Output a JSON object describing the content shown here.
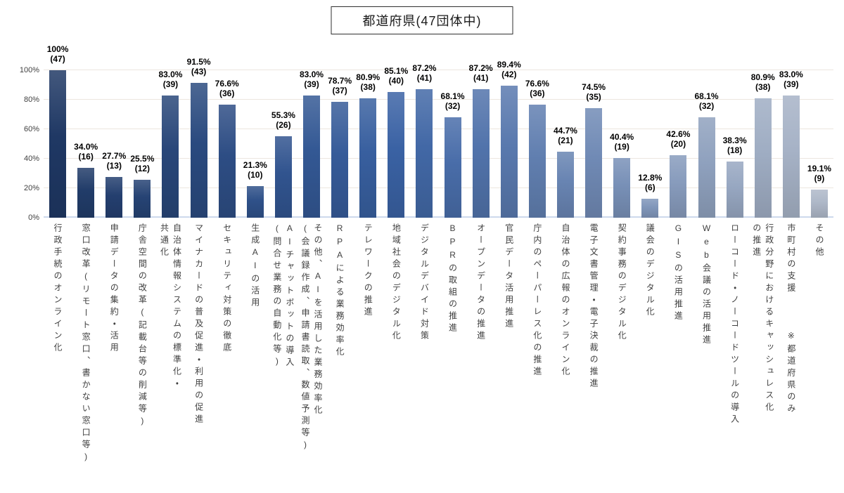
{
  "title": "都道府県(47団体中)",
  "chart_data": {
    "type": "bar",
    "title": "都道府県(47団体中)",
    "categories": [
      "行政手続のオンライン化",
      "窓口改革(リモート窓口、書かない窓口等)",
      "申請データの集約・活用",
      "庁舎空間の改革(記載台等の削減等)",
      "自治体情報システムの標準化・\n共通化",
      "マイナカードの普及促進・利用の促進",
      "セキュリティ対策の徹底",
      "生成AIの活用",
      "AIチャットボットの導入\n(問合せ業務の自動化等)",
      "その他、AIを活用した業務効率化\n(会議録作成、申請書読取、数値予測等)",
      "RPAによる業務効率化",
      "テレワークの推進",
      "地域社会のデジタル化",
      "デジタルデバイド対策",
      "BPRの取組の推進",
      "オープンデータの推進",
      "官民データ活用推進",
      "庁内のペーパーレス化の推進",
      "自治体の広報のオンライン化",
      "電子文書管理・電子決裁の推進",
      "契約事務のデジタル化",
      "議会のデジタル化",
      "GISの活用推進",
      "Web会議の活用推進",
      "ローコード・ノーコードツールの導入",
      "行政分野におけるキャッシュレス化\nの推進",
      "市町村の支援　　　※都道府県のみ",
      "その他"
    ],
    "values": [
      100,
      34.0,
      27.7,
      25.5,
      83.0,
      91.5,
      76.6,
      21.3,
      55.3,
      83.0,
      78.7,
      80.9,
      85.1,
      87.2,
      68.1,
      87.2,
      89.4,
      76.6,
      44.7,
      74.5,
      40.4,
      12.8,
      42.6,
      68.1,
      38.3,
      80.9,
      83.0,
      19.1
    ],
    "counts": [
      47,
      16,
      13,
      12,
      39,
      43,
      36,
      10,
      26,
      39,
      37,
      38,
      40,
      41,
      32,
      41,
      42,
      36,
      21,
      35,
      19,
      6,
      20,
      32,
      18,
      38,
      39,
      9
    ],
    "pct_labels": [
      "100%",
      "34.0%",
      "27.7%",
      "25.5%",
      "83.0%",
      "91.5%",
      "76.6%",
      "21.3%",
      "55.3%",
      "83.0%",
      "78.7%",
      "80.9%",
      "85.1%",
      "87.2%",
      "68.1%",
      "87.2%",
      "89.4%",
      "76.6%",
      "44.7%",
      "74.5%",
      "40.4%",
      "12.8%",
      "42.6%",
      "68.1%",
      "38.3%",
      "80.9%",
      "83.0%",
      "19.1%"
    ],
    "count_labels": [
      "(47)",
      "(16)",
      "(13)",
      "(12)",
      "(39)",
      "(43)",
      "(36)",
      "(10)",
      "(26)",
      "(39)",
      "(37)",
      "(38)",
      "(40)",
      "(41)",
      "(32)",
      "(41)",
      "(42)",
      "(36)",
      "(21)",
      "(35)",
      "(19)",
      "(6)",
      "(20)",
      "(32)",
      "(18)",
      "(38)",
      "(39)",
      "(9)"
    ],
    "yticks": [
      {
        "label": "100%",
        "value": 100
      },
      {
        "label": "80%",
        "value": 80
      },
      {
        "label": "60%",
        "value": 60
      },
      {
        "label": "40%",
        "value": 40
      },
      {
        "label": "20%",
        "value": 20
      },
      {
        "label": "0%",
        "value": 0
      }
    ],
    "ylim": [
      0,
      100
    ],
    "grid": true,
    "legend": "none",
    "palette": {
      "start": "#1F3864",
      "mid": "#3A62A4",
      "end": "#AEB8C8",
      "mid_index": 12
    },
    "grid_color": "#ece6df",
    "axis_line_color": "#cdd9ec"
  }
}
